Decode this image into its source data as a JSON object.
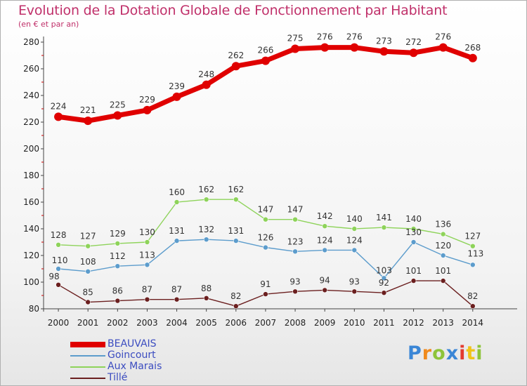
{
  "title": "Evolution de la Dotation Globale de Fonctionnement par Habitant",
  "subtitle": "(en € et par an)",
  "logo_text": "Proxiti",
  "chart_data": {
    "type": "line",
    "title": "Evolution de la Dotation Globale de Fonctionnement par Habitant",
    "subtitle": "(en € et par an)",
    "xlabel": "",
    "ylabel": "",
    "x": [
      "2000",
      "2001",
      "2002",
      "2003",
      "2004",
      "2005",
      "2006",
      "2007",
      "2008",
      "2009",
      "2010",
      "2011",
      "2012",
      "2013",
      "2014"
    ],
    "ylim": [
      80,
      280
    ],
    "yticks": [
      80,
      100,
      120,
      140,
      160,
      180,
      200,
      220,
      240,
      260,
      280
    ],
    "grid": false,
    "legend_position": "bottom-left",
    "series": [
      {
        "name": "BEAUVAIS",
        "color": "#e00000",
        "values": [
          224,
          221,
          225,
          229,
          239,
          248,
          262,
          266,
          275,
          276,
          276,
          273,
          272,
          276,
          268
        ]
      },
      {
        "name": "Goincourt",
        "color": "#5c9ccc",
        "values": [
          110,
          108,
          112,
          113,
          131,
          132,
          131,
          126,
          123,
          124,
          124,
          103,
          130,
          120,
          113
        ]
      },
      {
        "name": "Aux Marais",
        "color": "#8ed35a",
        "values": [
          128,
          127,
          129,
          130,
          160,
          162,
          162,
          147,
          147,
          142,
          140,
          141,
          140,
          136,
          127
        ]
      },
      {
        "name": "Tillé",
        "color": "#6b1f1f",
        "values": [
          98,
          85,
          86,
          87,
          87,
          88,
          82,
          91,
          93,
          94,
          93,
          92,
          101,
          101,
          82
        ]
      }
    ]
  }
}
